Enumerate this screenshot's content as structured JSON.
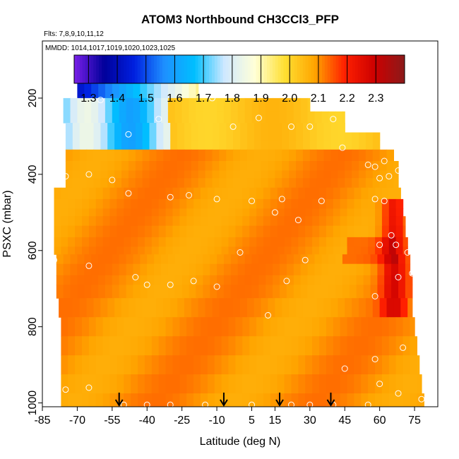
{
  "chart_data": {
    "type": "heatmap",
    "title": "ATOM3 Northbound CH3CCl3_PFP",
    "flights_label": "Flts: 7,8,9,10,11,12",
    "dates_label": "MMDD: 1014,1017,1019,1020,1023,1025",
    "xlabel": "Latitude (deg N)",
    "ylabel": "PSXC (mbar)",
    "xlim": [
      -85,
      85
    ],
    "ylim": [
      1010,
      50
    ],
    "x_ticks": [
      -85,
      -70,
      -55,
      -40,
      -25,
      -10,
      5,
      15,
      30,
      45,
      60,
      75
    ],
    "y_ticks": [
      200,
      400,
      600,
      800,
      1000
    ],
    "colorbar": {
      "min": 1.25,
      "max": 2.4,
      "tick_values": [
        1.3,
        1.4,
        1.5,
        1.6,
        1.7,
        1.8,
        1.9,
        2.0,
        2.1,
        2.2,
        2.3
      ],
      "tick_labels": [
        "1.3",
        "1.4",
        "1.5",
        "1.6",
        "1.7",
        "1.8",
        "1.9",
        "2.0",
        "2.1",
        "2.2",
        "2.3"
      ],
      "color_stops": [
        "#7a1fe8",
        "#00009a",
        "#0020e0",
        "#1e90ff",
        "#00bfff",
        "#cfe8ff",
        "#ffffd8",
        "#ffe033",
        "#ffa500",
        "#ff2000",
        "#cc0000",
        "#8b1a1a"
      ]
    },
    "field": {
      "pressure_levels": [
        180,
        220,
        250,
        280,
        300,
        320,
        350,
        380,
        400,
        420,
        450,
        480,
        500,
        520,
        550,
        580,
        600,
        620,
        650,
        680,
        700,
        750,
        800,
        850,
        900,
        950,
        1000
      ],
      "lat_range_by_level": [
        [
          -70,
          -18
        ],
        [
          -76,
          30
        ],
        [
          -76,
          45
        ],
        [
          -75,
          45
        ],
        [
          -75,
          60
        ],
        [
          -75,
          60
        ],
        [
          -75,
          66
        ],
        [
          -75,
          68
        ],
        [
          -75,
          68
        ],
        [
          -75,
          68
        ],
        [
          -80,
          69
        ],
        [
          -80,
          70
        ],
        [
          -80,
          70
        ],
        [
          -80,
          71
        ],
        [
          -80,
          71
        ],
        [
          -80,
          72
        ],
        [
          -80,
          72
        ],
        [
          -79,
          73
        ],
        [
          -79,
          73
        ],
        [
          -79,
          74
        ],
        [
          -79,
          74
        ],
        [
          -78,
          74
        ],
        [
          -77,
          75
        ],
        [
          -77,
          76
        ],
        [
          -77,
          77
        ],
        [
          -77,
          78
        ],
        [
          -77,
          79
        ]
      ]
    },
    "sample_points": [
      {
        "lat": -60,
        "p": 205
      },
      {
        "lat": -12,
        "p": 200
      },
      {
        "lat": -35,
        "p": 255
      },
      {
        "lat": -48,
        "p": 295
      },
      {
        "lat": -3,
        "p": 275
      },
      {
        "lat": 8,
        "p": 252
      },
      {
        "lat": 22,
        "p": 275
      },
      {
        "lat": 30,
        "p": 275
      },
      {
        "lat": 40,
        "p": 255
      },
      {
        "lat": 44,
        "p": 330
      },
      {
        "lat": 55,
        "p": 375
      },
      {
        "lat": 58,
        "p": 380
      },
      {
        "lat": 62,
        "p": 365
      },
      {
        "lat": 68,
        "p": 390
      },
      {
        "lat": 70,
        "p": 425
      },
      {
        "lat": 64,
        "p": 405
      },
      {
        "lat": 60,
        "p": 410
      },
      {
        "lat": -75,
        "p": 405
      },
      {
        "lat": -65,
        "p": 400
      },
      {
        "lat": -55,
        "p": 415
      },
      {
        "lat": -48,
        "p": 450
      },
      {
        "lat": -30,
        "p": 460
      },
      {
        "lat": -22,
        "p": 455
      },
      {
        "lat": -10,
        "p": 465
      },
      {
        "lat": 5,
        "p": 470
      },
      {
        "lat": 18,
        "p": 465
      },
      {
        "lat": 35,
        "p": 470
      },
      {
        "lat": 15,
        "p": 500
      },
      {
        "lat": 25,
        "p": 520
      },
      {
        "lat": 58,
        "p": 465
      },
      {
        "lat": 62,
        "p": 470
      },
      {
        "lat": 65,
        "p": 560
      },
      {
        "lat": 67,
        "p": 585
      },
      {
        "lat": 72,
        "p": 605
      },
      {
        "lat": 60,
        "p": 585
      },
      {
        "lat": 0,
        "p": 605
      },
      {
        "lat": 28,
        "p": 625
      },
      {
        "lat": -80,
        "p": 625
      },
      {
        "lat": -65,
        "p": 640
      },
      {
        "lat": -45,
        "p": 670
      },
      {
        "lat": -40,
        "p": 690
      },
      {
        "lat": -30,
        "p": 690
      },
      {
        "lat": -20,
        "p": 680
      },
      {
        "lat": -10,
        "p": 695
      },
      {
        "lat": 20,
        "p": 680
      },
      {
        "lat": 58,
        "p": 720
      },
      {
        "lat": 68,
        "p": 670
      },
      {
        "lat": 74,
        "p": 660
      },
      {
        "lat": 12,
        "p": 770
      },
      {
        "lat": 70,
        "p": 855
      },
      {
        "lat": 58,
        "p": 885
      },
      {
        "lat": -75,
        "p": 965
      },
      {
        "lat": -65,
        "p": 960
      },
      {
        "lat": 45,
        "p": 910
      },
      {
        "lat": 60,
        "p": 950
      },
      {
        "lat": 68,
        "p": 975
      },
      {
        "lat": 78,
        "p": 990
      },
      {
        "lat": -40,
        "p": 1005
      },
      {
        "lat": -30,
        "p": 1005
      },
      {
        "lat": -15,
        "p": 1005
      },
      {
        "lat": 5,
        "p": 1005
      },
      {
        "lat": 22,
        "p": 1005
      },
      {
        "lat": 40,
        "p": 1005
      },
      {
        "lat": 55,
        "p": 1005
      },
      {
        "lat": -50,
        "p": 1005
      },
      {
        "lat": 30,
        "p": 1005
      }
    ],
    "arrows_at_lat": [
      -52,
      -7,
      17,
      39
    ]
  }
}
